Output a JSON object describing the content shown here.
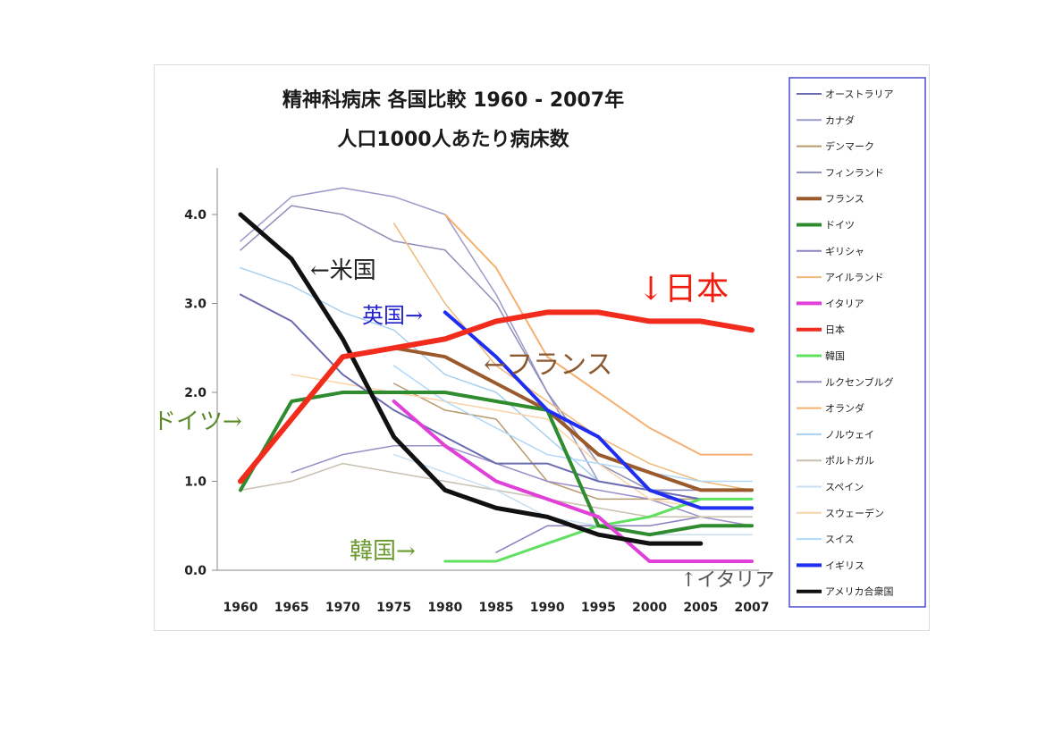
{
  "chart_data": {
    "type": "line",
    "title": "精神科病床 各国比較 1960 - 2007年",
    "subtitle": "人口1000人あたり病床数",
    "x": [
      "1960",
      "1965",
      "1970",
      "1975",
      "1980",
      "1985",
      "1990",
      "1995",
      "2000",
      "2005",
      "2007"
    ],
    "ylim": [
      0,
      4.5
    ],
    "yticks": [
      "0.0",
      "1.0",
      "2.0",
      "3.0",
      "4.0"
    ],
    "ytick_values": [
      0,
      1,
      2,
      3,
      4
    ],
    "grid": false,
    "legend_position": "right",
    "series": [
      {
        "name": "オーストラリア",
        "color": "#6b6bb0",
        "width": 2,
        "values": [
          3.1,
          2.8,
          2.2,
          1.8,
          1.5,
          1.2,
          1.2,
          1.0,
          0.9,
          0.8,
          0.8
        ]
      },
      {
        "name": "カナダ",
        "color": "#9a9ac8",
        "width": 1.5,
        "values": [
          3.7,
          4.2,
          4.3,
          4.2,
          4.0,
          3.1,
          2.0,
          1.0,
          0.9,
          0.9,
          0.9
        ]
      },
      {
        "name": "デンマーク",
        "color": "#b89a6e",
        "width": 1.5,
        "values": [
          null,
          null,
          null,
          2.1,
          1.8,
          1.7,
          1.0,
          0.8,
          0.8,
          0.8,
          0.8
        ]
      },
      {
        "name": "フィンランド",
        "color": "#8e8eb8",
        "width": 1.5,
        "values": [
          3.6,
          4.1,
          4.0,
          3.7,
          3.6,
          3.0,
          2.0,
          1.2,
          0.9,
          0.9,
          0.9
        ]
      },
      {
        "name": "フランス",
        "color": "#9a5a2c",
        "width": 4,
        "values": [
          null,
          null,
          2.4,
          2.5,
          2.4,
          2.1,
          1.8,
          1.3,
          1.1,
          0.9,
          0.9
        ]
      },
      {
        "name": "ドイツ",
        "color": "#2e8b2e",
        "width": 4,
        "values": [
          0.9,
          1.9,
          2.0,
          2.0,
          2.0,
          1.9,
          1.8,
          0.5,
          0.4,
          0.5,
          0.5
        ]
      },
      {
        "name": "ギリシャ",
        "color": "#8a82c0",
        "width": 1.5,
        "values": [
          null,
          null,
          null,
          null,
          null,
          0.2,
          0.5,
          0.5,
          0.5,
          0.6,
          0.6
        ]
      },
      {
        "name": "アイルランド",
        "color": "#f0b878",
        "width": 1.5,
        "values": [
          null,
          null,
          null,
          3.9,
          3.0,
          2.3,
          1.9,
          1.5,
          1.2,
          1.0,
          0.9
        ]
      },
      {
        "name": "イタリア",
        "color": "#e040d8",
        "width": 4,
        "values": [
          null,
          null,
          null,
          1.9,
          1.4,
          1.0,
          0.8,
          0.6,
          0.1,
          0.1,
          0.1
        ]
      },
      {
        "name": "日本",
        "color": "#f22c1c",
        "width": 6,
        "values": [
          1.0,
          1.7,
          2.4,
          2.5,
          2.6,
          2.8,
          2.9,
          2.9,
          2.8,
          2.8,
          2.7
        ]
      },
      {
        "name": "韓国",
        "color": "#5fe05f",
        "width": 3,
        "values": [
          null,
          null,
          null,
          null,
          0.1,
          0.1,
          0.3,
          0.5,
          0.6,
          0.8,
          0.8
        ]
      },
      {
        "name": "ルクセンブルグ",
        "color": "#9b8dc8",
        "width": 1.5,
        "values": [
          null,
          1.1,
          1.3,
          1.4,
          1.4,
          1.2,
          1.0,
          0.9,
          0.8,
          0.6,
          0.5
        ]
      },
      {
        "name": "オランダ",
        "color": "#f5b070",
        "width": 2,
        "values": [
          null,
          null,
          null,
          null,
          4.0,
          3.4,
          2.4,
          2.0,
          1.6,
          1.3,
          1.3
        ]
      },
      {
        "name": "ノルウェイ",
        "color": "#a8d0f0",
        "width": 1.5,
        "values": [
          3.4,
          3.2,
          2.9,
          2.7,
          2.2,
          2.0,
          1.5,
          1.0,
          0.9,
          0.8,
          0.8
        ]
      },
      {
        "name": "ポルトガル",
        "color": "#c8c0b0",
        "width": 1.5,
        "values": [
          0.9,
          1.0,
          1.2,
          1.1,
          1.0,
          0.9,
          0.8,
          0.7,
          0.6,
          0.6,
          0.6
        ]
      },
      {
        "name": "スペイン",
        "color": "#c8def0",
        "width": 1.5,
        "values": [
          null,
          null,
          null,
          1.3,
          1.1,
          0.9,
          0.6,
          0.5,
          0.4,
          0.4,
          0.4
        ]
      },
      {
        "name": "スウェーデン",
        "color": "#f8d4a8",
        "width": 1.5,
        "values": [
          null,
          2.2,
          2.1,
          2.0,
          1.9,
          1.8,
          1.7,
          1.2,
          0.8,
          0.7,
          0.7
        ]
      },
      {
        "name": "スイス",
        "color": "#b0d8f8",
        "width": 1.5,
        "values": [
          null,
          null,
          null,
          2.3,
          1.9,
          1.6,
          1.3,
          1.2,
          1.1,
          1.0,
          1.0
        ]
      },
      {
        "name": "イギリス",
        "color": "#1f2ef0",
        "width": 4,
        "values": [
          null,
          null,
          null,
          null,
          2.9,
          2.4,
          1.8,
          1.5,
          0.9,
          0.7,
          0.7
        ]
      },
      {
        "name": "アメリカ合衆国",
        "color": "#111111",
        "width": 5,
        "values": [
          4.0,
          3.5,
          2.6,
          1.5,
          0.9,
          0.7,
          0.6,
          0.4,
          0.3,
          0.3,
          null
        ]
      }
    ],
    "annotations": [
      {
        "text": "←米国",
        "color": "#222222",
        "size": 26
      },
      {
        "text": "英国→",
        "color": "#2222cc",
        "size": 24
      },
      {
        "text": "↓日本",
        "color": "#f01e10",
        "size": 36
      },
      {
        "text": "←フランス",
        "color": "#8c5a30",
        "size": 30
      },
      {
        "text": "ドイツ→",
        "color": "#5a8a2a",
        "size": 26
      },
      {
        "text": "韓国→",
        "color": "#6a9a30",
        "size": 26
      },
      {
        "text": "↑イタリア",
        "color": "#555555",
        "size": 22
      }
    ]
  }
}
